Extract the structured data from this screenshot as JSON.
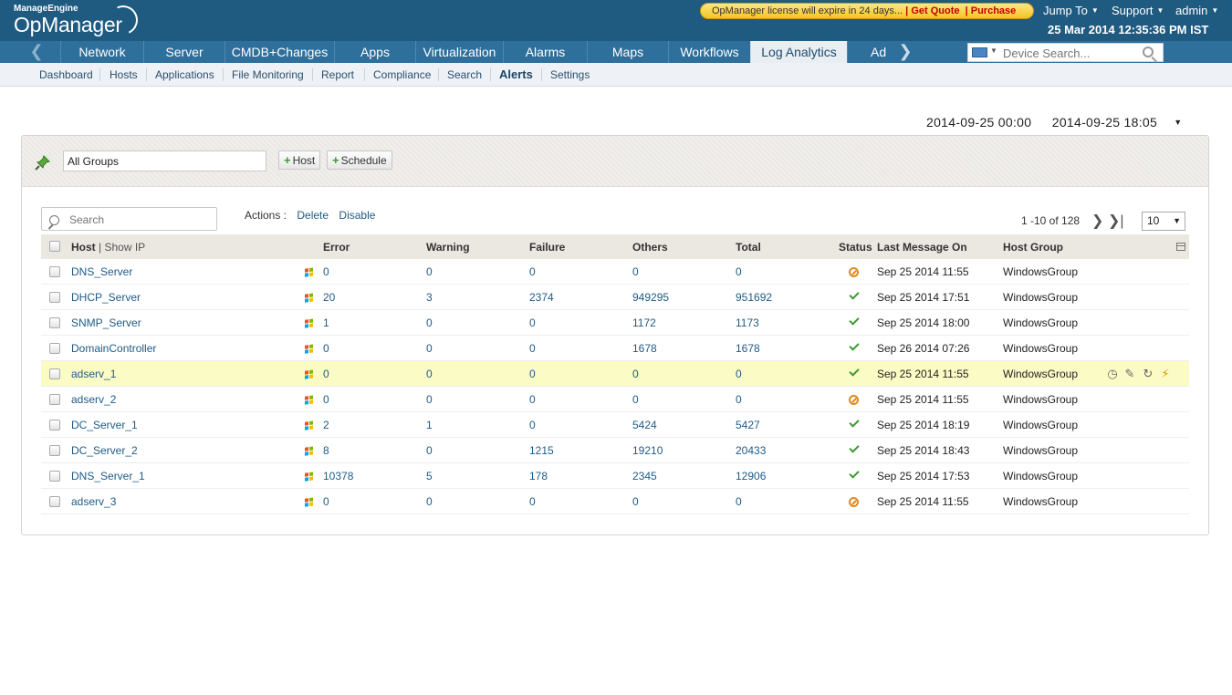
{
  "header": {
    "brand": "ManageEngine",
    "product": "OpManager",
    "license_text": "OpManager license will expire in 24 days...",
    "get_quote": "Get Quote",
    "purchase": "Purchase",
    "jump_to": "Jump To",
    "support": "Support",
    "user": "admin",
    "datetime": "25 Mar 2014 12:35:36 PM IST"
  },
  "nav": {
    "items": [
      "Network",
      "Server",
      "CMDB+Changes",
      "Apps",
      "Virtualization",
      "Alarms",
      "Maps",
      "Workflows",
      "Log Analytics",
      "Ad"
    ],
    "active": "Log Analytics",
    "device_search_placeholder": "Device Search..."
  },
  "subnav": {
    "items": [
      "Dashboard",
      "Hosts",
      "Applications",
      "File Monitoring",
      "Report",
      "Compliance",
      "Search",
      "Alerts",
      "Settings"
    ],
    "active": "Alerts"
  },
  "date_range": {
    "from": "2014-09-25 00:00",
    "to": "2014-09-25 18:05"
  },
  "toolbar": {
    "group_value": "All Groups",
    "add_host": "Host",
    "add_schedule": "Schedule"
  },
  "table_controls": {
    "search_placeholder": "Search",
    "actions_label": "Actions :",
    "delete": "Delete",
    "disable": "Disable",
    "pager_text": "1 -10 of 128",
    "per_page": "10"
  },
  "table": {
    "columns": {
      "host": "Host",
      "show_ip": "Show IP",
      "error": "Error",
      "warning": "Warning",
      "failure": "Failure",
      "others": "Others",
      "total": "Total",
      "status": "Status",
      "last_message": "Last Message On",
      "host_group": "Host Group"
    },
    "rows": [
      {
        "host": "DNS_Server",
        "error": "0",
        "warning": "0",
        "failure": "0",
        "others": "0",
        "total": "0",
        "status": "not-available",
        "last": "Sep 25 2014 11:55",
        "group": "WindowsGroup"
      },
      {
        "host": "DHCP_Server",
        "error": "20",
        "warning": "3",
        "failure": "2374",
        "others": "949295",
        "total": "951692",
        "status": "ok",
        "last": "Sep 25 2014 17:51",
        "group": "WindowsGroup"
      },
      {
        "host": "SNMP_Server",
        "error": "1",
        "warning": "0",
        "failure": "0",
        "others": "1172",
        "total": "1173",
        "status": "ok",
        "last": "Sep 25 2014 18:00",
        "group": "WindowsGroup"
      },
      {
        "host": "DomainController",
        "error": "0",
        "warning": "0",
        "failure": "0",
        "others": "1678",
        "total": "1678",
        "status": "ok",
        "last": "Sep 26 2014 07:26",
        "group": "WindowsGroup"
      },
      {
        "host": "adserv_1",
        "error": "0",
        "warning": "0",
        "failure": "0",
        "others": "0",
        "total": "0",
        "status": "ok",
        "last": "Sep 25 2014 11:55",
        "group": "WindowsGroup"
      },
      {
        "host": "adserv_2",
        "error": "0",
        "warning": "0",
        "failure": "0",
        "others": "0",
        "total": "0",
        "status": "not-available",
        "last": "Sep 25 2014 11:55",
        "group": "WindowsGroup"
      },
      {
        "host": "DC_Server_1",
        "error": "2",
        "warning": "1",
        "failure": "0",
        "others": "5424",
        "total": "5427",
        "status": "ok",
        "last": "Sep 25 2014 18:19",
        "group": "WindowsGroup"
      },
      {
        "host": "DC_Server_2",
        "error": "8",
        "warning": "0",
        "failure": "1215",
        "others": "19210",
        "total": "20433",
        "status": "ok",
        "last": "Sep 25 2014 18:43",
        "group": "WindowsGroup"
      },
      {
        "host": "DNS_Server_1",
        "error": "10378",
        "warning": "5",
        "failure": "178",
        "others": "2345",
        "total": "12906",
        "status": "ok",
        "last": "Sep 25 2014 17:53",
        "group": "WindowsGroup"
      },
      {
        "host": "adserv_3",
        "error": "0",
        "warning": "0",
        "failure": "0",
        "others": "0",
        "total": "0",
        "status": "not-available",
        "last": "Sep 25 2014 11:55",
        "group": "WindowsGroup"
      }
    ],
    "highlighted_row": 4
  },
  "colors": {
    "header_bg": "#1f5a80",
    "nav_bg": "#2e6f9c",
    "link": "#1e5b86",
    "ok": "#3f9a33",
    "not_available": "#e08a1f",
    "row_highlight": "#fbfbc5"
  }
}
